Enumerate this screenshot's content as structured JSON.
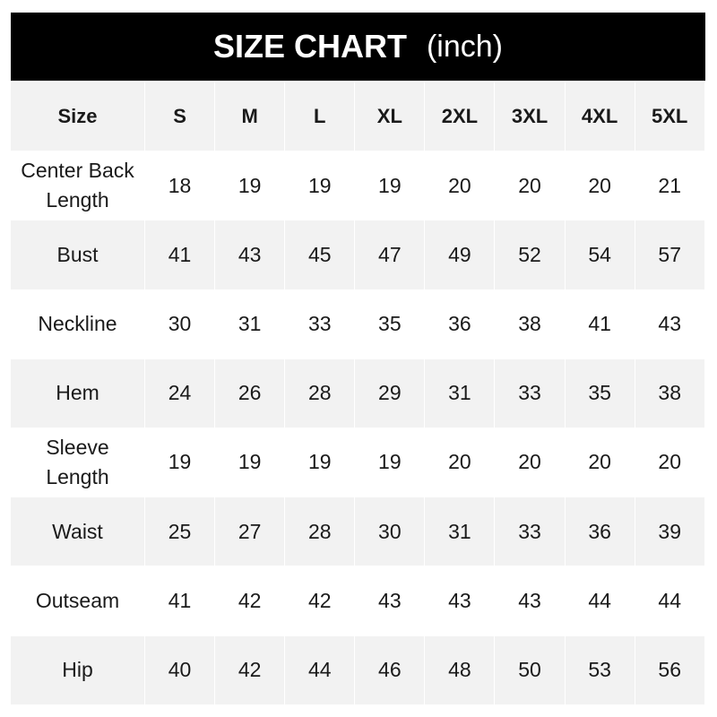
{
  "title": {
    "main": "SIZE CHART",
    "unit": "(inch)"
  },
  "table": {
    "header": [
      "Size",
      "S",
      "M",
      "L",
      "XL",
      "2XL",
      "3XL",
      "4XL",
      "5XL"
    ],
    "rows": [
      {
        "label": "Center Back Length",
        "values": [
          "18",
          "19",
          "19",
          "19",
          "20",
          "20",
          "20",
          "21"
        ]
      },
      {
        "label": "Bust",
        "values": [
          "41",
          "43",
          "45",
          "47",
          "49",
          "52",
          "54",
          "57"
        ]
      },
      {
        "label": "Neckline",
        "values": [
          "30",
          "31",
          "33",
          "35",
          "36",
          "38",
          "41",
          "43"
        ]
      },
      {
        "label": "Hem",
        "values": [
          "24",
          "26",
          "28",
          "29",
          "31",
          "33",
          "35",
          "38"
        ]
      },
      {
        "label": "Sleeve Length",
        "values": [
          "19",
          "19",
          "19",
          "19",
          "20",
          "20",
          "20",
          "20"
        ]
      },
      {
        "label": "Waist",
        "values": [
          "25",
          "27",
          "28",
          "30",
          "31",
          "33",
          "36",
          "39"
        ]
      },
      {
        "label": "Outseam",
        "values": [
          "41",
          "42",
          "42",
          "43",
          "43",
          "43",
          "44",
          "44"
        ]
      },
      {
        "label": "Hip",
        "values": [
          "40",
          "42",
          "44",
          "46",
          "48",
          "50",
          "53",
          "56"
        ]
      }
    ]
  },
  "colors": {
    "title_bg": "#000000",
    "stripe": "#f2f2f2",
    "text": "#1a1a1a"
  }
}
